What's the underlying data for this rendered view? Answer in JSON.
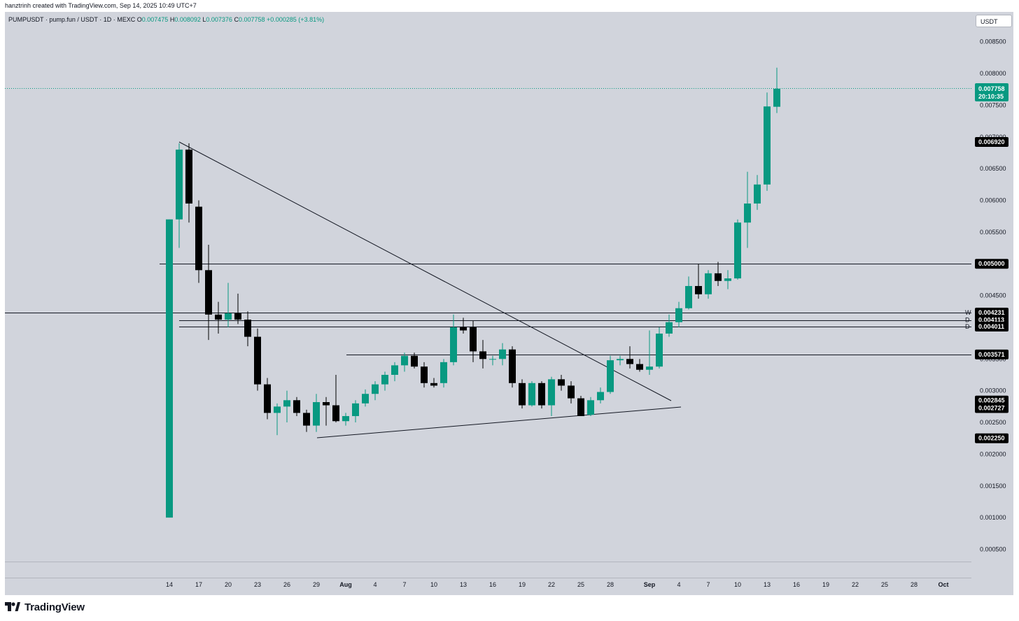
{
  "credit": "hanztrinh created with TradingView.com, Sep 14, 2025 10:49 UTC+7",
  "legend": {
    "symbol": "PUMPUSDT · pump.fun / USDT · 1D · MEXC",
    "open_label": "O",
    "open": "0.007475",
    "high_label": "H",
    "high": "0.008092",
    "low_label": "L",
    "low": "0.007376",
    "close_label": "C",
    "close": "0.007758",
    "change": "+0.000285 (+3.81%)"
  },
  "currency_button": "USDT",
  "brand": {
    "name": "TradingView",
    "icon": "tradingview-logo-icon"
  },
  "colors": {
    "up": "#089981",
    "down": "#000000",
    "background": "#d1d4dc",
    "line": "#131722"
  },
  "chart_data": {
    "type": "candlestick",
    "symbol": "PUMPUSDT",
    "timeframe": "1D",
    "ylim": [
      0.0002,
      0.0088
    ],
    "y_ticks": [
      0.0005,
      0.001,
      0.0015,
      0.002,
      0.0025,
      0.003,
      0.0035,
      0.004,
      0.0045,
      0.005,
      0.0055,
      0.006,
      0.0065,
      0.007,
      0.0075,
      0.008,
      0.0085
    ],
    "y_tick_labels": [
      "0.000500",
      "0.001000",
      "0.001500",
      "0.002000",
      "0.002500",
      "0.003000",
      "0.003500",
      "0.004000",
      "0.004500",
      "0.005000",
      "0.005500",
      "0.006000",
      "0.006500",
      "0.007000",
      "0.007500",
      "0.008000",
      "0.008500"
    ],
    "x_ticks": [
      {
        "label": "14",
        "day": 0
      },
      {
        "label": "17",
        "day": 3
      },
      {
        "label": "20",
        "day": 6
      },
      {
        "label": "23",
        "day": 9
      },
      {
        "label": "26",
        "day": 12
      },
      {
        "label": "29",
        "day": 15
      },
      {
        "label": "Aug",
        "day": 18,
        "bold": true
      },
      {
        "label": "4",
        "day": 21
      },
      {
        "label": "7",
        "day": 24
      },
      {
        "label": "10",
        "day": 27
      },
      {
        "label": "13",
        "day": 30
      },
      {
        "label": "16",
        "day": 33
      },
      {
        "label": "19",
        "day": 36
      },
      {
        "label": "22",
        "day": 39
      },
      {
        "label": "25",
        "day": 42
      },
      {
        "label": "28",
        "day": 45
      },
      {
        "label": "Sep",
        "day": 49,
        "bold": true
      },
      {
        "label": "4",
        "day": 52
      },
      {
        "label": "7",
        "day": 55
      },
      {
        "label": "10",
        "day": 58
      },
      {
        "label": "13",
        "day": 61
      },
      {
        "label": "16",
        "day": 64
      },
      {
        "label": "19",
        "day": 67
      },
      {
        "label": "22",
        "day": 70
      },
      {
        "label": "25",
        "day": 73
      },
      {
        "label": "28",
        "day": 76
      },
      {
        "label": "Oct",
        "day": 79,
        "bold": true
      }
    ],
    "candles": [
      {
        "d": 0,
        "o": 0.001,
        "h": 0.0057,
        "l": 0.001,
        "c": 0.0057
      },
      {
        "d": 1,
        "o": 0.0057,
        "h": 0.0069,
        "l": 0.00525,
        "c": 0.0068
      },
      {
        "d": 2,
        "o": 0.0068,
        "h": 0.0069,
        "l": 0.00565,
        "c": 0.00595
      },
      {
        "d": 3,
        "o": 0.0059,
        "h": 0.006,
        "l": 0.0047,
        "c": 0.0049
      },
      {
        "d": 4,
        "o": 0.0049,
        "h": 0.0053,
        "l": 0.0038,
        "c": 0.0042
      },
      {
        "d": 5,
        "o": 0.0042,
        "h": 0.0044,
        "l": 0.0039,
        "c": 0.00412
      },
      {
        "d": 6,
        "o": 0.00412,
        "h": 0.0047,
        "l": 0.004,
        "c": 0.00422
      },
      {
        "d": 7,
        "o": 0.00422,
        "h": 0.00453,
        "l": 0.00405,
        "c": 0.00412
      },
      {
        "d": 8,
        "o": 0.00412,
        "h": 0.00425,
        "l": 0.0037,
        "c": 0.00385
      },
      {
        "d": 9,
        "o": 0.00385,
        "h": 0.00398,
        "l": 0.003,
        "c": 0.0031
      },
      {
        "d": 10,
        "o": 0.0031,
        "h": 0.0032,
        "l": 0.00255,
        "c": 0.00265
      },
      {
        "d": 11,
        "o": 0.00265,
        "h": 0.0028,
        "l": 0.0023,
        "c": 0.00275
      },
      {
        "d": 12,
        "o": 0.00275,
        "h": 0.003,
        "l": 0.0025,
        "c": 0.00285
      },
      {
        "d": 13,
        "o": 0.00285,
        "h": 0.0029,
        "l": 0.0026,
        "c": 0.00265
      },
      {
        "d": 14,
        "o": 0.00265,
        "h": 0.0027,
        "l": 0.00235,
        "c": 0.00245
      },
      {
        "d": 15,
        "o": 0.00245,
        "h": 0.00295,
        "l": 0.00235,
        "c": 0.00282
      },
      {
        "d": 16,
        "o": 0.00282,
        "h": 0.0029,
        "l": 0.00245,
        "c": 0.00277
      },
      {
        "d": 17,
        "o": 0.00277,
        "h": 0.00325,
        "l": 0.0025,
        "c": 0.00252
      },
      {
        "d": 18,
        "o": 0.00252,
        "h": 0.00265,
        "l": 0.00245,
        "c": 0.0026
      },
      {
        "d": 19,
        "o": 0.0026,
        "h": 0.00285,
        "l": 0.0025,
        "c": 0.0028
      },
      {
        "d": 20,
        "o": 0.0028,
        "h": 0.00302,
        "l": 0.00275,
        "c": 0.00295
      },
      {
        "d": 21,
        "o": 0.00295,
        "h": 0.00315,
        "l": 0.00285,
        "c": 0.0031
      },
      {
        "d": 22,
        "o": 0.0031,
        "h": 0.0033,
        "l": 0.003,
        "c": 0.00325
      },
      {
        "d": 23,
        "o": 0.00325,
        "h": 0.00345,
        "l": 0.00315,
        "c": 0.0034
      },
      {
        "d": 24,
        "o": 0.0034,
        "h": 0.0036,
        "l": 0.0033,
        "c": 0.00355
      },
      {
        "d": 25,
        "o": 0.00355,
        "h": 0.0036,
        "l": 0.00335,
        "c": 0.00338
      },
      {
        "d": 26,
        "o": 0.00338,
        "h": 0.00345,
        "l": 0.00305,
        "c": 0.00312
      },
      {
        "d": 27,
        "o": 0.00312,
        "h": 0.0032,
        "l": 0.00305,
        "c": 0.00308
      },
      {
        "d": 28,
        "o": 0.00312,
        "h": 0.0035,
        "l": 0.00305,
        "c": 0.00345
      },
      {
        "d": 29,
        "o": 0.00345,
        "h": 0.0042,
        "l": 0.0034,
        "c": 0.004
      },
      {
        "d": 30,
        "o": 0.004,
        "h": 0.00415,
        "l": 0.0039,
        "c": 0.00395
      },
      {
        "d": 31,
        "o": 0.004,
        "h": 0.0041,
        "l": 0.00345,
        "c": 0.00362
      },
      {
        "d": 32,
        "o": 0.00362,
        "h": 0.0038,
        "l": 0.00335,
        "c": 0.0035
      },
      {
        "d": 33,
        "o": 0.0035,
        "h": 0.00355,
        "l": 0.0034,
        "c": 0.0035
      },
      {
        "d": 34,
        "o": 0.0035,
        "h": 0.00375,
        "l": 0.0034,
        "c": 0.00365
      },
      {
        "d": 35,
        "o": 0.00365,
        "h": 0.0037,
        "l": 0.00305,
        "c": 0.00312
      },
      {
        "d": 36,
        "o": 0.00312,
        "h": 0.00318,
        "l": 0.00272,
        "c": 0.00277
      },
      {
        "d": 37,
        "o": 0.00277,
        "h": 0.00315,
        "l": 0.00275,
        "c": 0.00312
      },
      {
        "d": 38,
        "o": 0.00312,
        "h": 0.00315,
        "l": 0.00272,
        "c": 0.00277
      },
      {
        "d": 39,
        "o": 0.00277,
        "h": 0.00322,
        "l": 0.0026,
        "c": 0.00318
      },
      {
        "d": 40,
        "o": 0.00318,
        "h": 0.00325,
        "l": 0.003,
        "c": 0.00308
      },
      {
        "d": 41,
        "o": 0.00308,
        "h": 0.00315,
        "l": 0.0028,
        "c": 0.00288
      },
      {
        "d": 42,
        "o": 0.00288,
        "h": 0.00292,
        "l": 0.0026,
        "c": 0.0026
      },
      {
        "d": 43,
        "o": 0.00262,
        "h": 0.0029,
        "l": 0.0026,
        "c": 0.00285
      },
      {
        "d": 44,
        "o": 0.00285,
        "h": 0.00305,
        "l": 0.0028,
        "c": 0.00298
      },
      {
        "d": 45,
        "o": 0.00298,
        "h": 0.00355,
        "l": 0.00295,
        "c": 0.00348
      },
      {
        "d": 46,
        "o": 0.00348,
        "h": 0.00355,
        "l": 0.0034,
        "c": 0.0035
      },
      {
        "d": 47,
        "o": 0.0035,
        "h": 0.0037,
        "l": 0.00335,
        "c": 0.00342
      },
      {
        "d": 48,
        "o": 0.00342,
        "h": 0.0035,
        "l": 0.0033,
        "c": 0.00333
      },
      {
        "d": 49,
        "o": 0.00333,
        "h": 0.00395,
        "l": 0.00325,
        "c": 0.00338
      },
      {
        "d": 50,
        "o": 0.00338,
        "h": 0.004,
        "l": 0.00335,
        "c": 0.0039
      },
      {
        "d": 51,
        "o": 0.0039,
        "h": 0.0042,
        "l": 0.00385,
        "c": 0.00408
      },
      {
        "d": 52,
        "o": 0.00408,
        "h": 0.0044,
        "l": 0.004,
        "c": 0.0043
      },
      {
        "d": 53,
        "o": 0.0043,
        "h": 0.0048,
        "l": 0.00428,
        "c": 0.00465
      },
      {
        "d": 54,
        "o": 0.00465,
        "h": 0.005,
        "l": 0.00445,
        "c": 0.00452
      },
      {
        "d": 55,
        "o": 0.00452,
        "h": 0.0049,
        "l": 0.00445,
        "c": 0.00485
      },
      {
        "d": 56,
        "o": 0.00485,
        "h": 0.00503,
        "l": 0.00465,
        "c": 0.00473
      },
      {
        "d": 57,
        "o": 0.00473,
        "h": 0.0049,
        "l": 0.0046,
        "c": 0.00477
      },
      {
        "d": 58,
        "o": 0.00477,
        "h": 0.0057,
        "l": 0.00475,
        "c": 0.00565
      },
      {
        "d": 59,
        "o": 0.00565,
        "h": 0.00645,
        "l": 0.00525,
        "c": 0.00595
      },
      {
        "d": 60,
        "o": 0.00595,
        "h": 0.0064,
        "l": 0.00585,
        "c": 0.00625
      },
      {
        "d": 61,
        "o": 0.00625,
        "h": 0.0077,
        "l": 0.00615,
        "c": 0.00748
      },
      {
        "d": 62,
        "o": 0.007475,
        "h": 0.008092,
        "l": 0.007376,
        "c": 0.007758
      }
    ],
    "drawings": {
      "horizontal_lines": [
        {
          "price": 0.005,
          "label": "0.005000",
          "letter": ""
        },
        {
          "price": 0.004231,
          "label": "0.004231",
          "letter": "W"
        },
        {
          "price": 0.004113,
          "label": "0.004113",
          "letter": "D"
        },
        {
          "price": 0.004011,
          "label": "0.004011",
          "letter": "D"
        },
        {
          "price": 0.003571,
          "label": "0.003571",
          "letter": ""
        }
      ],
      "trendlines": [
        {
          "from": {
            "d": 1,
            "p": 0.0069
          },
          "to": {
            "d": 51,
            "p": 0.00285
          }
        },
        {
          "from": {
            "d": 15,
            "p": 0.00225
          },
          "to": {
            "d": 52,
            "p": 0.00273
          }
        }
      ]
    },
    "price_labels": [
      {
        "price": 0.00692,
        "text": "0.006920"
      },
      {
        "price": 0.002845,
        "text": "0.002845"
      },
      {
        "price": 0.002727,
        "text": "0.002727"
      },
      {
        "price": 0.00225,
        "text": "0.002250"
      }
    ],
    "last_price": {
      "price": 0.007758,
      "text": "0.007758",
      "countdown": "20:10:35"
    }
  }
}
